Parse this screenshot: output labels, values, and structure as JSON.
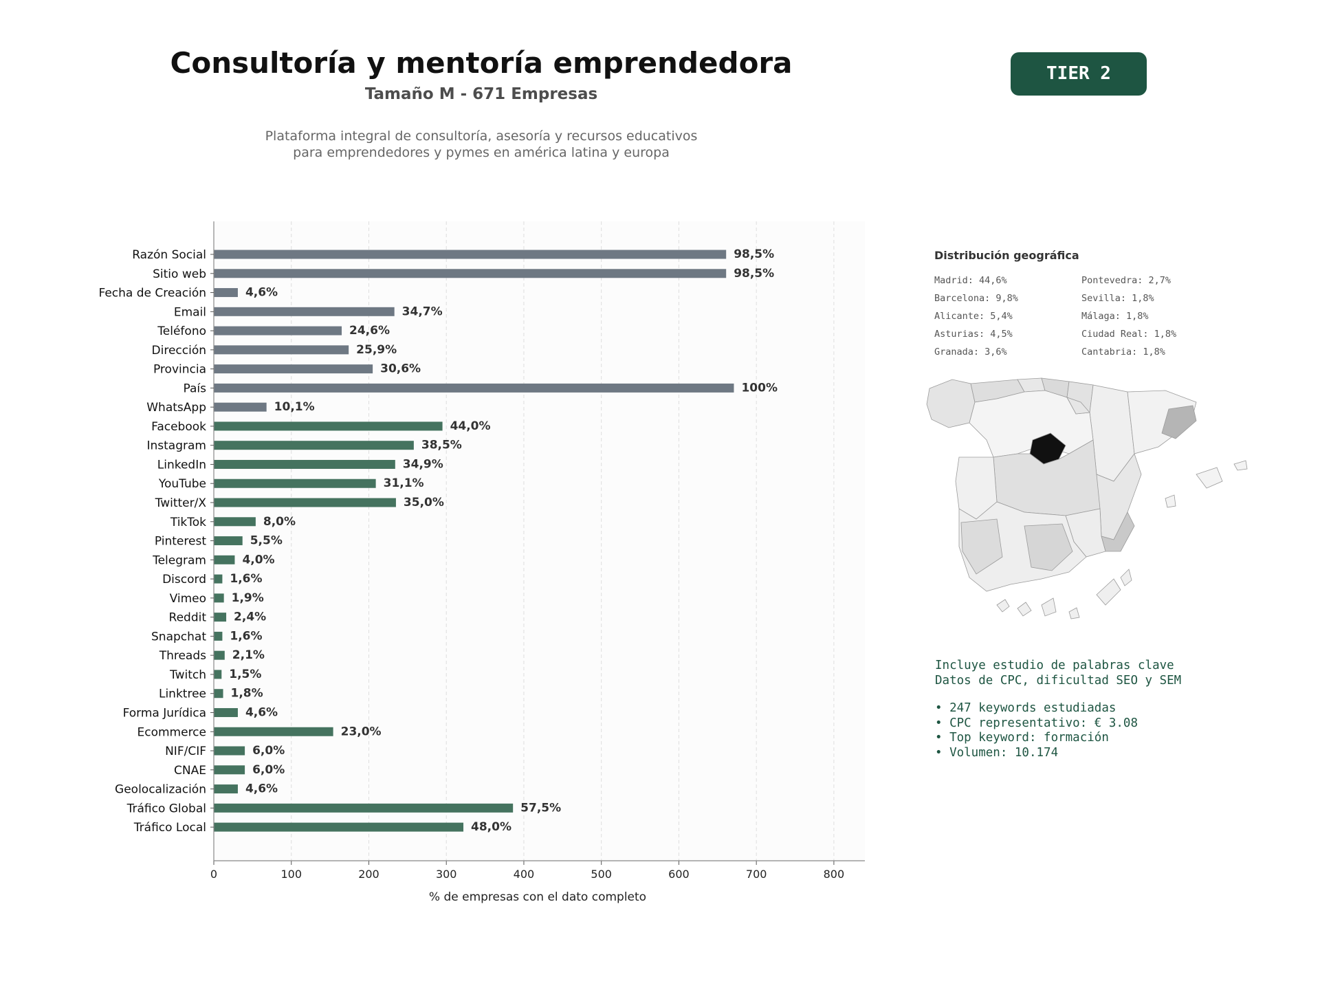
{
  "header": {
    "title": "Consultoría y mentoría emprendedora",
    "subtitle": "Tamaño M - 671 Empresas",
    "description_lines": [
      "Plataforma integral de consultoría, asesoría y recursos educativos",
      "para emprendedores y pymes en américa latina y europa"
    ],
    "badge": "TIER 2"
  },
  "colors": {
    "gray_bar": "#6e7883",
    "green_bar": "#45735f",
    "badge": "#1e5542",
    "map_highlight": "#111111"
  },
  "chart_data": {
    "type": "bar",
    "orientation": "horizontal",
    "xlabel": "% de empresas con el dato completo",
    "xlim": [
      0,
      840
    ],
    "xticks": [
      0,
      100,
      200,
      300,
      400,
      500,
      600,
      700,
      800
    ],
    "grid": "vertical dashed",
    "categories": [
      "Razón Social",
      "Sitio web",
      "Fecha de Creación",
      "Email",
      "Teléfono",
      "Dirección",
      "Provincia",
      "País",
      "WhatsApp",
      "Facebook",
      "Instagram",
      "LinkedIn",
      "YouTube",
      "Twitter/X",
      "TikTok",
      "Pinterest",
      "Telegram",
      "Discord",
      "Vimeo",
      "Reddit",
      "Snapchat",
      "Threads",
      "Twitch",
      "Linktree",
      "Forma Jurídica",
      "Ecommerce",
      "NIF/CIF",
      "CNAE",
      "Geolocalización",
      "Tráfico Global",
      "Tráfico Local"
    ],
    "values": [
      661,
      661,
      31,
      233,
      165,
      174,
      205,
      671,
      68,
      295,
      258,
      234,
      209,
      235,
      54,
      37,
      27,
      11,
      13,
      16,
      11,
      14,
      10,
      12,
      31,
      154,
      40,
      40,
      31,
      386,
      322
    ],
    "labels": [
      "98,5%",
      "98,5%",
      "4,6%",
      "34,7%",
      "24,6%",
      "25,9%",
      "30,6%",
      "100%",
      "10,1%",
      "44,0%",
      "38,5%",
      "34,9%",
      "31,1%",
      "35,0%",
      "8,0%",
      "5,5%",
      "4,0%",
      "1,6%",
      "1,9%",
      "2,4%",
      "1,6%",
      "2,1%",
      "1,5%",
      "1,8%",
      "4,6%",
      "23,0%",
      "6,0%",
      "6,0%",
      "4,6%",
      "57,5%",
      "48,0%"
    ],
    "groups": [
      "gray",
      "gray",
      "gray",
      "gray",
      "gray",
      "gray",
      "gray",
      "gray",
      "gray",
      "green",
      "green",
      "green",
      "green",
      "green",
      "green",
      "green",
      "green",
      "green",
      "green",
      "green",
      "green",
      "green",
      "green",
      "green",
      "green",
      "green",
      "green",
      "green",
      "green",
      "green",
      "green"
    ]
  },
  "geo": {
    "title": "Distribución geográfica",
    "items": [
      "Madrid: 44,6%",
      "Pontevedra: 2,7%",
      "Barcelona: 9,8%",
      "Sevilla: 1,8%",
      "Alicante: 5,4%",
      "Málaga: 1,8%",
      "Asturias: 4,5%",
      "Ciudad Real: 1,8%",
      "Granada: 3,6%",
      "Cantabria: 1,8%"
    ]
  },
  "keywords": {
    "intro": [
      "Incluye estudio de palabras clave",
      "Datos de CPC, dificultad SEO y SEM"
    ],
    "bullets": [
      "• 247 keywords estudiadas",
      "• CPC representativo: € 3.08",
      "• Top keyword: formación",
      "• Volumen: 10.174"
    ]
  }
}
